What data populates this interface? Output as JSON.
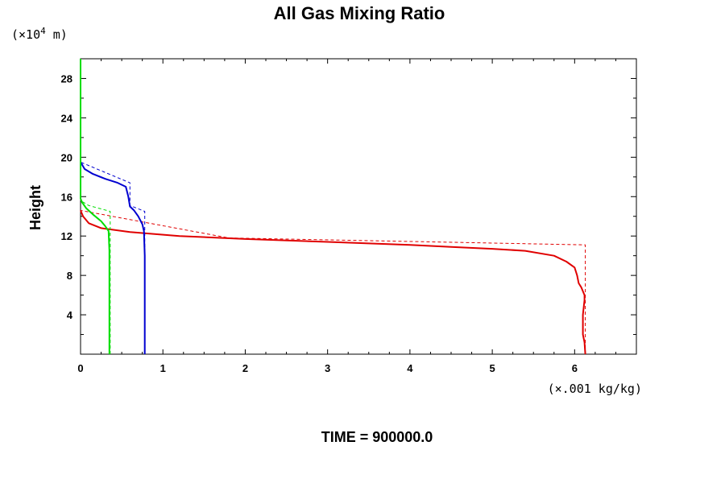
{
  "chart_data": {
    "type": "line",
    "title": "All Gas Mixing Ratio",
    "ylabel": "Height",
    "y_unit_prefix": "(×10",
    "y_unit_exp": "4",
    "y_unit_suffix": " m)",
    "x_unit": "(×.001 kg/kg)",
    "footer": "TIME = 900000.0",
    "xlim": [
      0,
      6.75
    ],
    "ylim": [
      0,
      30
    ],
    "x_ticks": [
      0,
      1,
      2,
      3,
      4,
      5,
      6
    ],
    "x_tick_labels": [
      "0",
      "1",
      "2",
      "3",
      "4",
      "5",
      "6"
    ],
    "y_ticks": [
      4,
      8,
      12,
      16,
      20,
      24,
      28
    ],
    "y_tick_labels": [
      "4",
      "8",
      "12",
      "16",
      "20",
      "24",
      "28"
    ],
    "grid": false,
    "series": [
      {
        "color": "#e00000",
        "style": "solid",
        "x": [
          6.13,
          6.12,
          6.1,
          6.1,
          6.12,
          6.12,
          6.08,
          6.05,
          6.03,
          6.0,
          5.9,
          5.75,
          5.4,
          5.0,
          4.5,
          4.0,
          3.0,
          2.0,
          1.2,
          0.6,
          0.25,
          0.1,
          0.03,
          0.0
        ],
        "y": [
          0.0,
          1.2,
          2.0,
          4.0,
          5.5,
          6.0,
          6.8,
          7.2,
          8.0,
          8.8,
          9.4,
          10.0,
          10.5,
          10.7,
          10.9,
          11.1,
          11.4,
          11.7,
          12.0,
          12.4,
          12.8,
          13.3,
          14.0,
          14.6
        ]
      },
      {
        "color": "#e00000",
        "style": "dashed",
        "x": [
          6.13,
          6.13,
          1.8,
          0.0
        ],
        "y": [
          0.0,
          11.1,
          11.8,
          14.6
        ]
      },
      {
        "color": "#0000d0",
        "style": "solid",
        "x": [
          0.78,
          0.78,
          0.77,
          0.75,
          0.7,
          0.65,
          0.6,
          0.58,
          0.55,
          0.45,
          0.3,
          0.15,
          0.05,
          0.0
        ],
        "y": [
          0.0,
          10.0,
          12.5,
          13.2,
          14.0,
          14.6,
          15.0,
          16.0,
          17.0,
          17.4,
          17.8,
          18.3,
          18.8,
          19.5
        ]
      },
      {
        "color": "#0000d0",
        "style": "dashed",
        "x": [
          0.78,
          0.78,
          0.6,
          0.6,
          0.0
        ],
        "y": [
          0.0,
          14.5,
          15.1,
          17.4,
          19.5
        ]
      },
      {
        "color": "#00dd00",
        "style": "solid",
        "x": [
          0.35,
          0.35,
          0.34,
          0.3,
          0.25,
          0.15,
          0.07,
          0.02,
          0.0,
          0.0
        ],
        "y": [
          0.0,
          10.5,
          12.5,
          13.0,
          13.5,
          14.2,
          14.8,
          15.4,
          15.8,
          30.0
        ]
      },
      {
        "color": "#00dd00",
        "style": "dashed",
        "x": [
          0.36,
          0.36,
          0.1,
          0.0
        ],
        "y": [
          0.0,
          14.5,
          15.1,
          15.6
        ]
      }
    ]
  }
}
